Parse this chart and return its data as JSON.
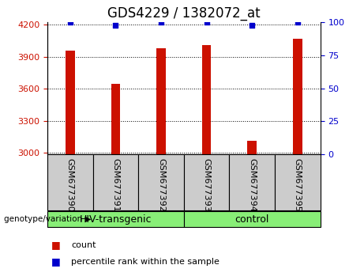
{
  "title": "GDS4229 / 1382072_at",
  "samples": [
    "GSM677390",
    "GSM677391",
    "GSM677392",
    "GSM677393",
    "GSM677394",
    "GSM677395"
  ],
  "counts": [
    3955,
    3645,
    3975,
    4010,
    3110,
    4065
  ],
  "percentile_ranks": [
    100,
    98,
    100,
    100,
    98,
    100
  ],
  "ylim_left": [
    2990,
    4220
  ],
  "ylim_right": [
    0,
    100
  ],
  "yticks_left": [
    3000,
    3300,
    3600,
    3900,
    4200
  ],
  "yticks_right": [
    0,
    25,
    50,
    75,
    100
  ],
  "group1_label": "HIV-transgenic",
  "group1_samples": [
    0,
    1,
    2
  ],
  "group2_label": "control",
  "group2_samples": [
    3,
    4,
    5
  ],
  "bar_color": "#cc1100",
  "percentile_color": "#0000cc",
  "group_bg_color": "#88ee77",
  "tick_label_bg": "#cccccc",
  "bar_width": 0.2,
  "title_fontsize": 12,
  "tick_fontsize": 8,
  "group_fontsize": 9,
  "legend_fontsize": 8
}
